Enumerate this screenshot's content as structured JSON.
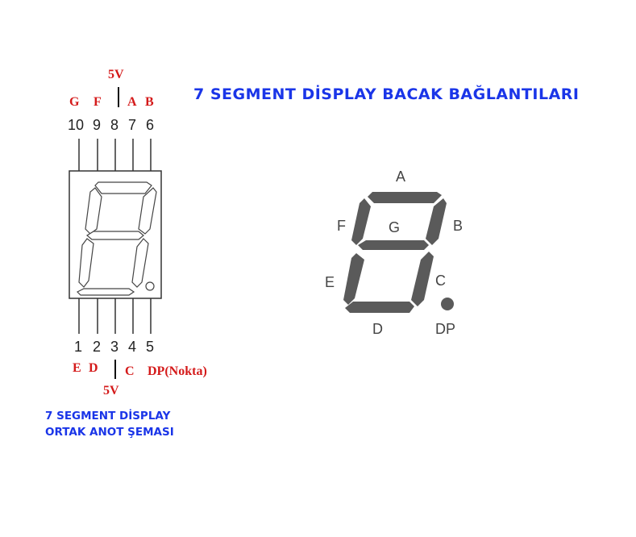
{
  "title": "7 SEGMENT DİSPLAY BACAK BAĞLANTILARI",
  "subtitle": {
    "line1": "7 SEGMENT DİSPLAY",
    "line2": "ORTAK ANOT ŞEMASI"
  },
  "top_pins": {
    "numbers": [
      "10",
      "9",
      "8",
      "7",
      "6"
    ],
    "labels": {
      "g": "G",
      "f": "F",
      "a": "A",
      "b": "B"
    },
    "common": "5V"
  },
  "bottom_pins": {
    "numbers": [
      "1",
      "2",
      "3",
      "4",
      "5"
    ],
    "labels": {
      "e": "E",
      "d": "D",
      "c": "C",
      "dp": "DP(Nokta)"
    },
    "common": "5V"
  },
  "segments": {
    "a": "A",
    "b": "B",
    "c": "C",
    "d": "D",
    "e": "E",
    "f": "F",
    "g": "G",
    "dp": "DP"
  },
  "colors": {
    "title": "#1a35e8",
    "pin_label": "#d41a1a",
    "segment": "#555555",
    "outline": "#333333"
  }
}
